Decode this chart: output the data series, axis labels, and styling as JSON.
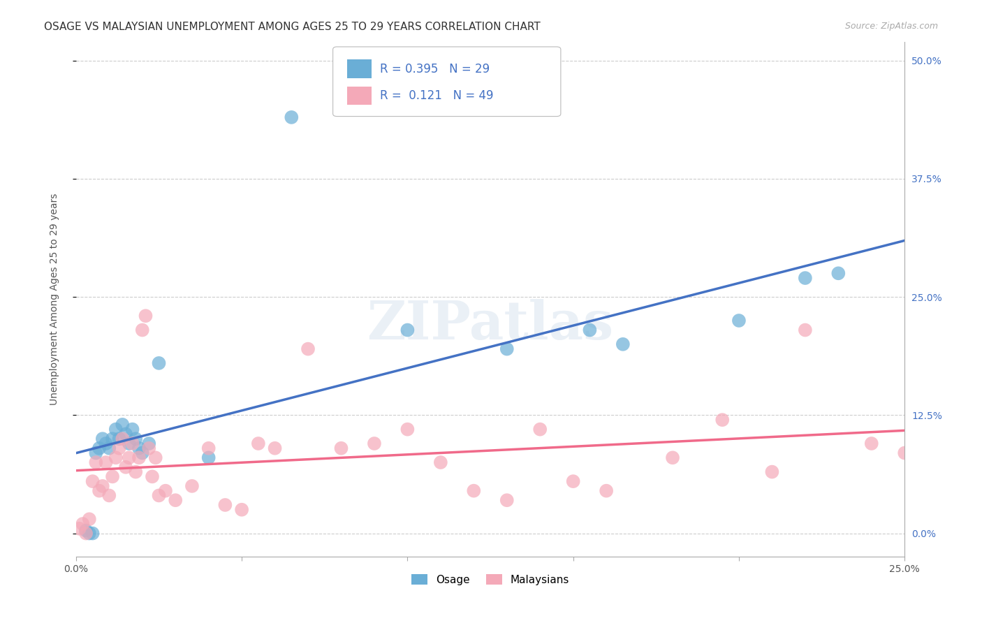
{
  "title": "OSAGE VS MALAYSIAN UNEMPLOYMENT AMONG AGES 25 TO 29 YEARS CORRELATION CHART",
  "source": "Source: ZipAtlas.com",
  "ylabel": "Unemployment Among Ages 25 to 29 years",
  "xlim": [
    0.0,
    0.25
  ],
  "ylim": [
    -0.025,
    0.52
  ],
  "yticks": [
    0.0,
    0.125,
    0.25,
    0.375,
    0.5
  ],
  "ytick_labels": [
    "0.0%",
    "12.5%",
    "25.0%",
    "37.5%",
    "50.0%"
  ],
  "osage_x": [
    0.003,
    0.004,
    0.005,
    0.006,
    0.007,
    0.008,
    0.009,
    0.01,
    0.011,
    0.012,
    0.013,
    0.014,
    0.015,
    0.016,
    0.017,
    0.018,
    0.019,
    0.02,
    0.022,
    0.025,
    0.04,
    0.065,
    0.1,
    0.13,
    0.155,
    0.2,
    0.22,
    0.23,
    0.165
  ],
  "osage_y": [
    0.003,
    0.0,
    0.0,
    0.085,
    0.09,
    0.1,
    0.095,
    0.09,
    0.1,
    0.11,
    0.1,
    0.115,
    0.105,
    0.095,
    0.11,
    0.1,
    0.09,
    0.085,
    0.095,
    0.18,
    0.08,
    0.44,
    0.215,
    0.195,
    0.215,
    0.225,
    0.27,
    0.275,
    0.2
  ],
  "malaysian_x": [
    0.001,
    0.002,
    0.003,
    0.004,
    0.005,
    0.006,
    0.007,
    0.008,
    0.009,
    0.01,
    0.011,
    0.012,
    0.013,
    0.014,
    0.015,
    0.016,
    0.017,
    0.018,
    0.019,
    0.02,
    0.021,
    0.022,
    0.023,
    0.024,
    0.025,
    0.027,
    0.03,
    0.035,
    0.04,
    0.045,
    0.05,
    0.055,
    0.06,
    0.07,
    0.08,
    0.09,
    0.1,
    0.11,
    0.12,
    0.13,
    0.14,
    0.15,
    0.16,
    0.18,
    0.195,
    0.21,
    0.22,
    0.24,
    0.25
  ],
  "malaysian_y": [
    0.005,
    0.01,
    0.0,
    0.015,
    0.055,
    0.075,
    0.045,
    0.05,
    0.075,
    0.04,
    0.06,
    0.08,
    0.09,
    0.1,
    0.07,
    0.08,
    0.095,
    0.065,
    0.08,
    0.215,
    0.23,
    0.09,
    0.06,
    0.08,
    0.04,
    0.045,
    0.035,
    0.05,
    0.09,
    0.03,
    0.025,
    0.095,
    0.09,
    0.195,
    0.09,
    0.095,
    0.11,
    0.075,
    0.045,
    0.035,
    0.11,
    0.055,
    0.045,
    0.08,
    0.12,
    0.065,
    0.215,
    0.095,
    0.085
  ],
  "osage_color": "#6aaed6",
  "malaysian_color": "#f4a9b8",
  "osage_line_color": "#4472c4",
  "malaysian_line_color": "#f06a8a",
  "osage_R": "0.395",
  "osage_N": "29",
  "malaysian_R": "0.121",
  "malaysian_N": "49",
  "watermark": "ZIPatlas",
  "background_color": "#ffffff",
  "grid_color": "#cccccc",
  "title_fontsize": 11,
  "label_fontsize": 10,
  "tick_fontsize": 10
}
